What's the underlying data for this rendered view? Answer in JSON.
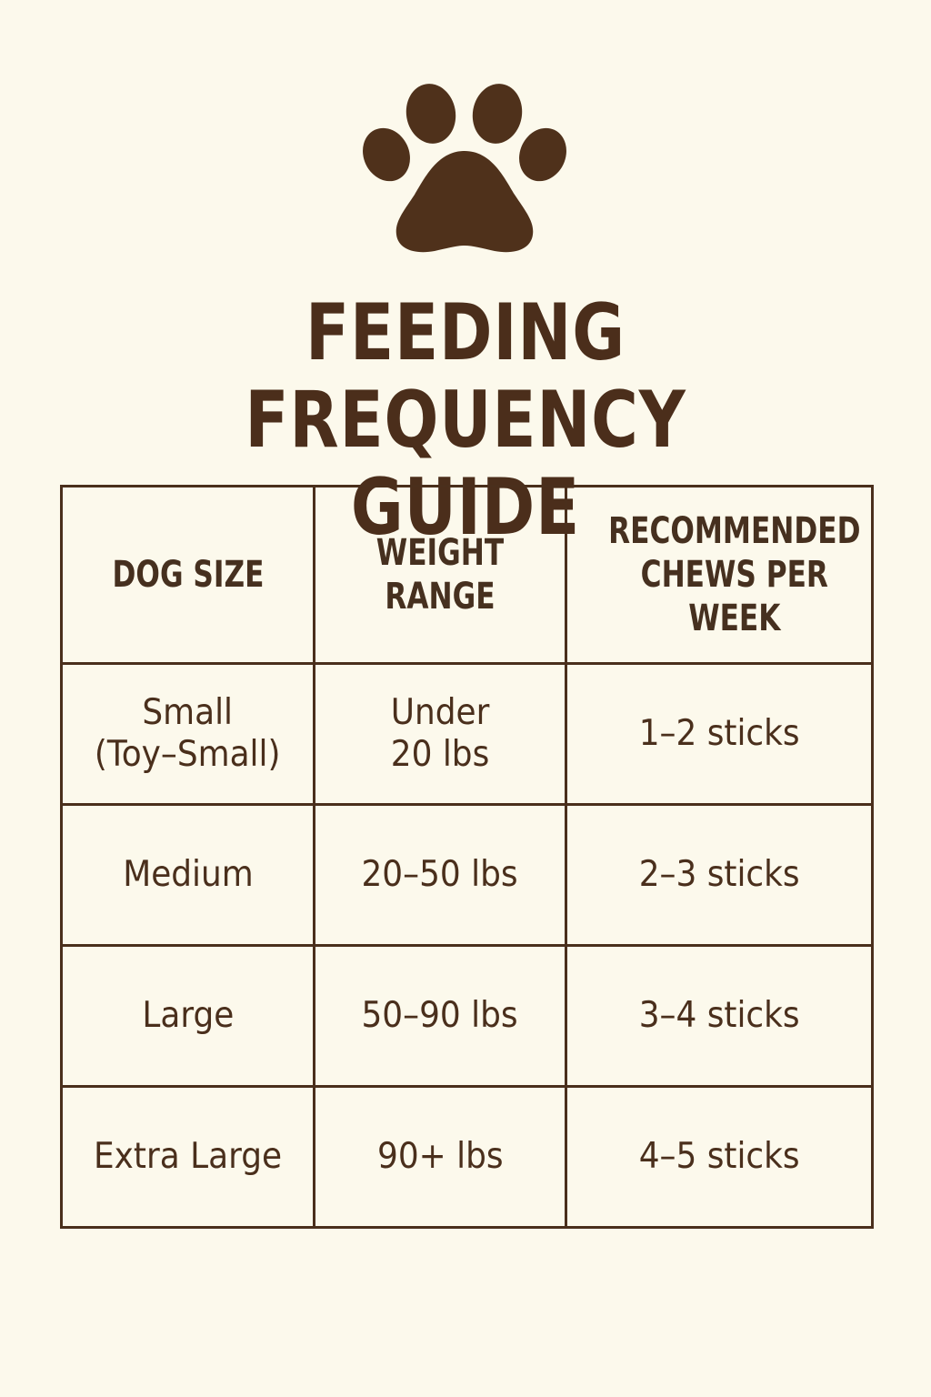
{
  "page": {
    "icon": "paw-print-icon",
    "title_lines": [
      "FEEDING FREQUENCY",
      "GUIDE"
    ],
    "colors": {
      "background": "#fcf9ec",
      "text": "#4a2f1c",
      "paw": "#4f311b"
    }
  },
  "table": {
    "headers": [
      [
        "DOG SIZE"
      ],
      [
        "WEIGHT",
        "RANGE"
      ],
      [
        "RECOMMENDED",
        "CHEWS PER",
        "WEEK"
      ]
    ],
    "rows": [
      {
        "size": [
          "Small",
          "(Toy–Small)"
        ],
        "weight": [
          "Under",
          "20 lbs"
        ],
        "chews": "1–2 sticks"
      },
      {
        "size": [
          "Medium"
        ],
        "weight": [
          "20–50 lbs"
        ],
        "chews": "2–3 sticks"
      },
      {
        "size": [
          "Large"
        ],
        "weight": [
          "50–90 lbs"
        ],
        "chews": "3–4 sticks"
      },
      {
        "size": [
          "Extra Large"
        ],
        "weight": [
          "90+ lbs"
        ],
        "chews": "4–5 sticks"
      }
    ]
  }
}
